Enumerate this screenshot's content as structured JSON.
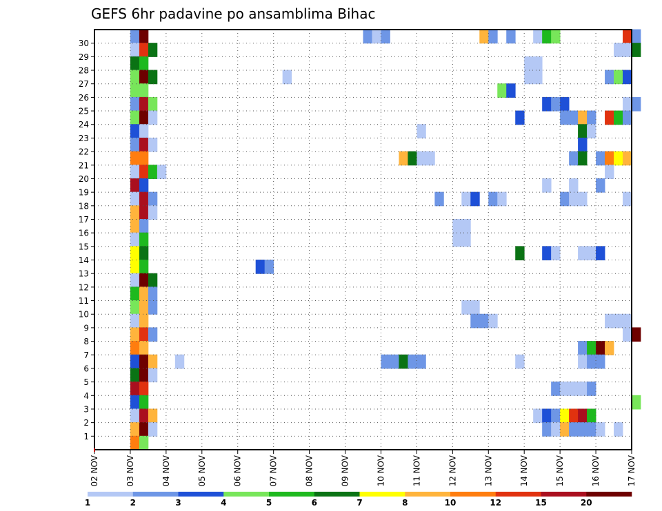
{
  "chart_data": {
    "type": "heatmap",
    "title": "GEFS 6hr padavine po ansamblima Bihac",
    "y_labels": [
      "1",
      "2",
      "3",
      "4",
      "5",
      "6",
      "7",
      "8",
      "9",
      "10",
      "11",
      "12",
      "13",
      "14",
      "15",
      "16",
      "17",
      "18",
      "19",
      "20",
      "21",
      "22",
      "23",
      "24",
      "25",
      "26",
      "27",
      "28",
      "29",
      "30"
    ],
    "x_labels": [
      "02 NOV",
      "03 NOV",
      "04 NOV",
      "05 NOV",
      "06 NOV",
      "07 NOV",
      "08 NOV",
      "09 NOV",
      "10 NOV",
      "11 NOV",
      "12 NOV",
      "13 NOV",
      "14 NOV",
      "15 NOV",
      "16 NOV",
      "17 NOV"
    ],
    "x_range_days": [
      2,
      17
    ],
    "time_step_hours": 6,
    "colorbar": {
      "colors": [
        "#b4c8f5",
        "#6e96e6",
        "#1e50d7",
        "#78e65a",
        "#1eb91e",
        "#0a7314",
        "#ffff00",
        "#ffb43c",
        "#ff7d0f",
        "#e1320f",
        "#aa0f1e",
        "#6e0000"
      ],
      "tick_labels": [
        "1",
        "2",
        "3",
        "4",
        "5",
        "6",
        "7",
        "8",
        "10",
        "12",
        "15",
        "20"
      ]
    },
    "cells": [
      {
        "m": 30,
        "s": [
          [
            4,
            2
          ],
          [
            5,
            12
          ]
        ]
      },
      {
        "m": 29,
        "s": [
          [
            4,
            1
          ],
          [
            5,
            10
          ],
          [
            6,
            6
          ]
        ]
      },
      {
        "m": 28,
        "s": [
          [
            4,
            6
          ],
          [
            5,
            5
          ]
        ]
      },
      {
        "m": 27,
        "s": [
          [
            4,
            4
          ],
          [
            5,
            12
          ],
          [
            6,
            6
          ]
        ]
      },
      {
        "m": 26,
        "s": [
          [
            4,
            4
          ],
          [
            5,
            4
          ]
        ]
      },
      {
        "m": 25,
        "s": [
          [
            4,
            2
          ],
          [
            5,
            11
          ],
          [
            6,
            4
          ]
        ]
      },
      {
        "m": 24,
        "s": [
          [
            4,
            4
          ],
          [
            5,
            12
          ],
          [
            6,
            1
          ]
        ]
      },
      {
        "m": 23,
        "s": [
          [
            4,
            3
          ],
          [
            5,
            1
          ]
        ]
      },
      {
        "m": 22,
        "s": [
          [
            4,
            2
          ],
          [
            5,
            11
          ],
          [
            6,
            1
          ]
        ]
      },
      {
        "m": 21,
        "s": [
          [
            4,
            9
          ],
          [
            5,
            9
          ]
        ]
      },
      {
        "m": 20,
        "s": [
          [
            4,
            1
          ],
          [
            5,
            10
          ],
          [
            6,
            5
          ],
          [
            7,
            1
          ]
        ]
      },
      {
        "m": 19,
        "s": [
          [
            4,
            11
          ],
          [
            5,
            3
          ]
        ]
      },
      {
        "m": 18,
        "s": [
          [
            4,
            1
          ],
          [
            5,
            11
          ],
          [
            6,
            2
          ]
        ]
      },
      {
        "m": 17,
        "s": [
          [
            4,
            8
          ],
          [
            5,
            11
          ],
          [
            6,
            1
          ]
        ]
      },
      {
        "m": 16,
        "s": [
          [
            4,
            8
          ],
          [
            5,
            2
          ]
        ]
      },
      {
        "m": 15,
        "s": [
          [
            4,
            1
          ],
          [
            5,
            5
          ]
        ]
      },
      {
        "m": 14,
        "s": [
          [
            4,
            7
          ],
          [
            5,
            6
          ]
        ]
      },
      {
        "m": 13,
        "s": [
          [
            4,
            7
          ],
          [
            5,
            5
          ]
        ]
      },
      {
        "m": 12,
        "s": [
          [
            4,
            1
          ],
          [
            5,
            12
          ],
          [
            6,
            6
          ]
        ]
      },
      {
        "m": 11,
        "s": [
          [
            4,
            5
          ],
          [
            5,
            8
          ],
          [
            6,
            2
          ]
        ]
      },
      {
        "m": 10,
        "s": [
          [
            4,
            4
          ],
          [
            5,
            8
          ],
          [
            6,
            2
          ]
        ]
      },
      {
        "m": 9,
        "s": [
          [
            4,
            1
          ],
          [
            5,
            8
          ]
        ]
      },
      {
        "m": 8,
        "s": [
          [
            4,
            8
          ],
          [
            5,
            10
          ],
          [
            6,
            2
          ]
        ]
      },
      {
        "m": 7,
        "s": [
          [
            4,
            9
          ],
          [
            5,
            8
          ]
        ]
      },
      {
        "m": 6,
        "s": [
          [
            4,
            3
          ],
          [
            5,
            12
          ],
          [
            6,
            8
          ]
        ]
      },
      {
        "m": 5,
        "s": [
          [
            4,
            6
          ],
          [
            5,
            12
          ],
          [
            6,
            1
          ]
        ]
      },
      {
        "m": 4,
        "s": [
          [
            4,
            11
          ],
          [
            5,
            10
          ]
        ]
      },
      {
        "m": 3,
        "s": [
          [
            4,
            3
          ],
          [
            5,
            5
          ]
        ]
      },
      {
        "m": 2,
        "s": [
          [
            4,
            1
          ],
          [
            5,
            11
          ],
          [
            6,
            8
          ]
        ]
      },
      {
        "m": 1,
        "s": [
          [
            4,
            8
          ],
          [
            5,
            12
          ],
          [
            6,
            1
          ]
        ]
      },
      {
        "m": 0,
        "s": [
          [
            4,
            9
          ],
          [
            5,
            4
          ]
        ]
      },
      {
        "m": 30,
        "s": [
          [
            30,
            2
          ],
          [
            31,
            1
          ],
          [
            32,
            2
          ],
          [
            43,
            8
          ],
          [
            44,
            2
          ],
          [
            46,
            2
          ],
          [
            49,
            1
          ],
          [
            50,
            5
          ],
          [
            51,
            4
          ],
          [
            59,
            10
          ],
          [
            60,
            2
          ]
        ]
      },
      {
        "m": 29,
        "s": [
          [
            58,
            1
          ],
          [
            59,
            1
          ],
          [
            60,
            6
          ]
        ]
      },
      {
        "m": 28,
        "s": [
          [
            48,
            1
          ],
          [
            49,
            1
          ]
        ]
      },
      {
        "m": 27,
        "s": [
          [
            21,
            1
          ],
          [
            48,
            1
          ],
          [
            49,
            1
          ],
          [
            57,
            2
          ],
          [
            58,
            4
          ],
          [
            59,
            3
          ]
        ]
      },
      {
        "m": 26,
        "s": [
          [
            45,
            4
          ],
          [
            46,
            3
          ]
        ]
      },
      {
        "m": 25,
        "s": [
          [
            50,
            3
          ],
          [
            51,
            2
          ],
          [
            52,
            3
          ],
          [
            59,
            1
          ],
          [
            60,
            2
          ]
        ]
      },
      {
        "m": 24,
        "s": [
          [
            47,
            3
          ],
          [
            52,
            2
          ],
          [
            53,
            2
          ],
          [
            54,
            8
          ],
          [
            55,
            2
          ],
          [
            57,
            10
          ],
          [
            58,
            5
          ],
          [
            59,
            2
          ]
        ]
      },
      {
        "m": 23,
        "s": [
          [
            36,
            1
          ],
          [
            54,
            6
          ],
          [
            55,
            1
          ]
        ]
      },
      {
        "m": 22,
        "s": [
          [
            54,
            3
          ]
        ]
      },
      {
        "m": 21,
        "s": [
          [
            34,
            8
          ],
          [
            35,
            6
          ],
          [
            36,
            1
          ],
          [
            37,
            1
          ],
          [
            53,
            2
          ],
          [
            54,
            6
          ],
          [
            56,
            2
          ],
          [
            57,
            9
          ],
          [
            58,
            7
          ],
          [
            59,
            8
          ]
        ]
      },
      {
        "m": 20,
        "s": [
          [
            57,
            1
          ]
        ]
      },
      {
        "m": 19,
        "s": [
          [
            50,
            1
          ],
          [
            53,
            1
          ],
          [
            56,
            2
          ]
        ]
      },
      {
        "m": 18,
        "s": [
          [
            38,
            2
          ],
          [
            41,
            1
          ],
          [
            42,
            3
          ],
          [
            44,
            2
          ],
          [
            45,
            1
          ],
          [
            52,
            2
          ],
          [
            53,
            1
          ],
          [
            54,
            1
          ],
          [
            59,
            1
          ]
        ]
      },
      {
        "m": 16,
        "s": [
          [
            40,
            1
          ],
          [
            41,
            1
          ]
        ]
      },
      {
        "m": 15,
        "s": [
          [
            40,
            1
          ],
          [
            41,
            1
          ]
        ]
      },
      {
        "m": 14,
        "s": [
          [
            47,
            6
          ],
          [
            50,
            3
          ],
          [
            51,
            1
          ],
          [
            54,
            1
          ],
          [
            55,
            1
          ],
          [
            56,
            3
          ]
        ]
      },
      {
        "m": 13,
        "s": [
          [
            18,
            3
          ],
          [
            19,
            2
          ]
        ]
      },
      {
        "m": 10,
        "s": [
          [
            41,
            1
          ],
          [
            42,
            1
          ]
        ]
      },
      {
        "m": 9,
        "s": [
          [
            42,
            2
          ],
          [
            43,
            2
          ],
          [
            44,
            1
          ],
          [
            57,
            1
          ],
          [
            58,
            1
          ],
          [
            59,
            1
          ]
        ]
      },
      {
        "m": 8,
        "s": [
          [
            59,
            1
          ],
          [
            60,
            12
          ]
        ]
      },
      {
        "m": 7,
        "s": [
          [
            54,
            2
          ],
          [
            55,
            5
          ],
          [
            56,
            12
          ],
          [
            57,
            8
          ]
        ]
      },
      {
        "m": 6,
        "s": [
          [
            9,
            1
          ],
          [
            32,
            2
          ],
          [
            33,
            2
          ],
          [
            34,
            6
          ],
          [
            35,
            2
          ],
          [
            36,
            2
          ],
          [
            47,
            1
          ],
          [
            54,
            1
          ],
          [
            55,
            2
          ],
          [
            56,
            2
          ]
        ]
      },
      {
        "m": 4,
        "s": [
          [
            51,
            2
          ],
          [
            52,
            1
          ],
          [
            53,
            1
          ],
          [
            54,
            1
          ],
          [
            55,
            2
          ]
        ]
      },
      {
        "m": 3,
        "s": [
          [
            60,
            4
          ]
        ]
      },
      {
        "m": 2,
        "s": [
          [
            49,
            1
          ],
          [
            50,
            3
          ],
          [
            51,
            2
          ],
          [
            52,
            7
          ],
          [
            53,
            10
          ],
          [
            54,
            11
          ],
          [
            55,
            5
          ]
        ]
      },
      {
        "m": 1,
        "s": [
          [
            50,
            2
          ],
          [
            51,
            1
          ],
          [
            52,
            8
          ],
          [
            53,
            2
          ],
          [
            54,
            2
          ],
          [
            55,
            2
          ],
          [
            56,
            1
          ],
          [
            58,
            1
          ]
        ]
      }
    ]
  }
}
